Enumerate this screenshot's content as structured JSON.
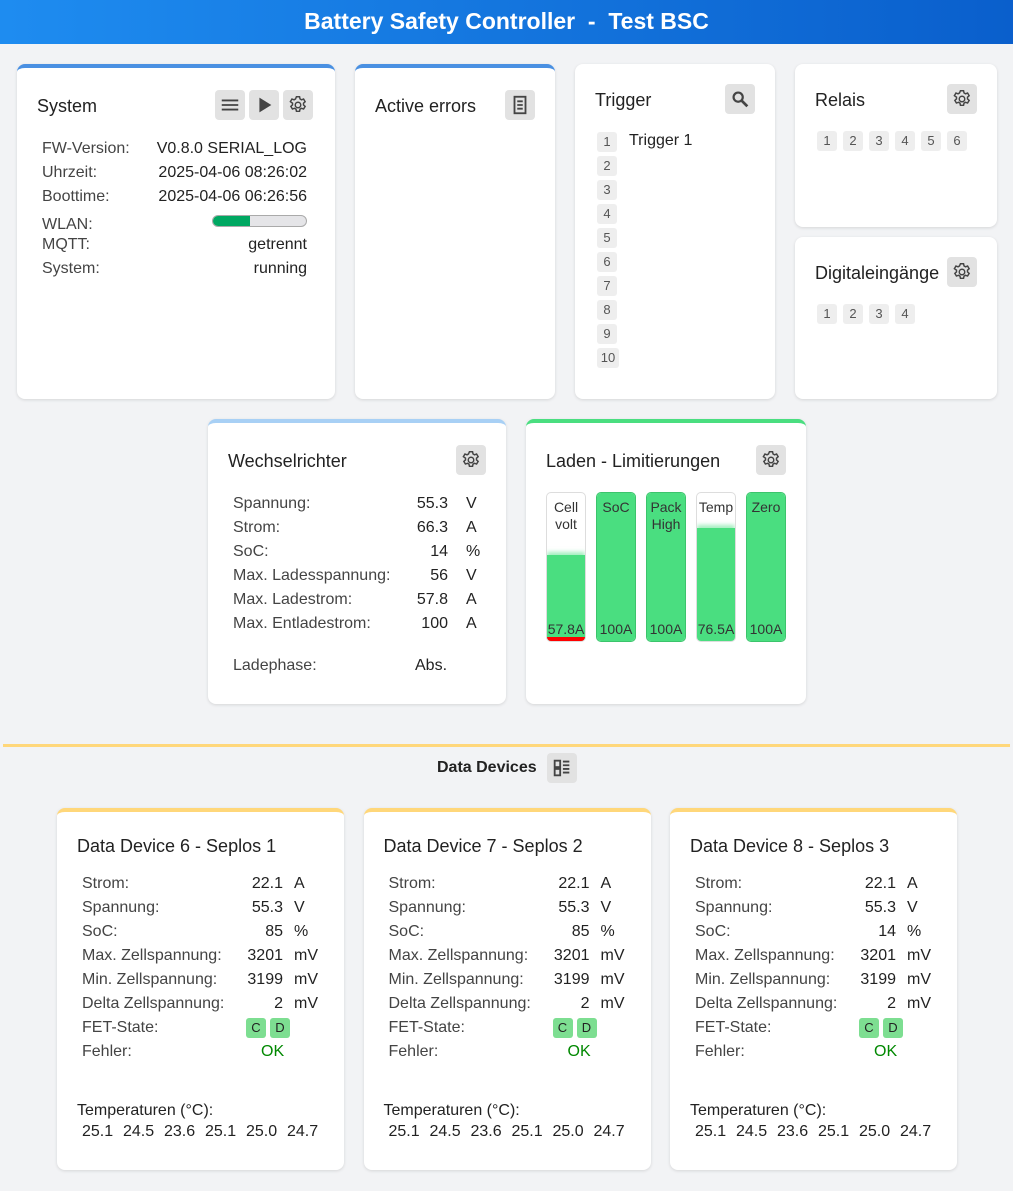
{
  "header": {
    "title": "Battery Safety Controller  -  Test BSC"
  },
  "colors": {
    "header": "#1e8cf0",
    "system_border": "#4a90e2",
    "inverter_border": "#a8d0f5",
    "charge_border": "#4ade80",
    "devices_border": "#ffd77a",
    "ok": "#008800",
    "fill": "#4ade80",
    "warn": "#ff0000"
  },
  "system": {
    "title": "System",
    "icons": [
      "menu-icon",
      "play-icon",
      "gear-icon"
    ],
    "rows": [
      {
        "label": "FW-Version:",
        "value": "V0.8.0 SERIAL_LOG"
      },
      {
        "label": "Uhrzeit:",
        "value": "2025-04-06 08:26:02"
      },
      {
        "label": "Boottime:",
        "value": "2025-04-06 06:26:56"
      }
    ],
    "wlan": {
      "label": "WLAN:",
      "signal_percent": 40
    },
    "rows2": [
      {
        "label": "MQTT:",
        "value": "getrennt"
      },
      {
        "label": "System:",
        "value": "running"
      }
    ]
  },
  "errors": {
    "title": "Active errors",
    "icon": "document-icon"
  },
  "trigger": {
    "title": "Trigger",
    "icon": "search-icon",
    "items": [
      {
        "n": "1",
        "name": "Trigger 1"
      },
      {
        "n": "2",
        "name": ""
      },
      {
        "n": "3",
        "name": ""
      },
      {
        "n": "4",
        "name": ""
      },
      {
        "n": "5",
        "name": ""
      },
      {
        "n": "6",
        "name": ""
      },
      {
        "n": "7",
        "name": ""
      },
      {
        "n": "8",
        "name": ""
      },
      {
        "n": "9",
        "name": ""
      },
      {
        "n": "10",
        "name": ""
      }
    ]
  },
  "relais": {
    "title": "Relais",
    "items": [
      "1",
      "2",
      "3",
      "4",
      "5",
      "6"
    ]
  },
  "digital": {
    "title": "Digitaleingänge",
    "items": [
      "1",
      "2",
      "3",
      "4"
    ]
  },
  "inverter": {
    "title": "Wechselrichter",
    "rows": [
      {
        "label": "Spannung:",
        "value": "55.3",
        "unit": "V"
      },
      {
        "label": "Strom:",
        "value": "66.3",
        "unit": "A"
      },
      {
        "label": "SoC:",
        "value": "14",
        "unit": "%"
      },
      {
        "label": "Max. Ladesspannung:",
        "value": "56",
        "unit": "V"
      },
      {
        "label": "Max. Ladestrom:",
        "value": "57.8",
        "unit": "A"
      },
      {
        "label": "Max. Entladestrom:",
        "value": "100",
        "unit": "A"
      }
    ],
    "phase_label": "Ladephase:",
    "phase_value": "Abs."
  },
  "charge": {
    "title": "Laden - Limitierungen",
    "bars": [
      {
        "label": "Cell volt",
        "value": "57.8A",
        "percent": 57.8,
        "limiting": true
      },
      {
        "label": "SoC",
        "value": "100A",
        "percent": 100
      },
      {
        "label": "Pack High",
        "value": "100A",
        "percent": 100
      },
      {
        "label": "Temp",
        "value": "76.5A",
        "percent": 76.5
      },
      {
        "label": "Zero",
        "value": "100A",
        "percent": 100
      }
    ]
  },
  "devices": {
    "title": "Data Devices",
    "icon": "list-view-icon",
    "items": [
      {
        "title": "Data Device 6 - Seplos 1",
        "soc": "85"
      },
      {
        "title": "Data Device 7 - Seplos 2",
        "soc": "85"
      },
      {
        "title": "Data Device 8 - Seplos 3",
        "soc": "14"
      }
    ],
    "rows": [
      {
        "label": "Strom:",
        "value": "22.1",
        "unit": "A"
      },
      {
        "label": "Spannung:",
        "value": "55.3",
        "unit": "V"
      },
      {
        "label": "SoC:",
        "value": "",
        "unit": "%"
      },
      {
        "label": "Max. Zellspannung:",
        "value": "3201",
        "unit": "mV"
      },
      {
        "label": "Min. Zellspannung:",
        "value": "3199",
        "unit": "mV"
      },
      {
        "label": "Delta Zellspannung:",
        "value": "2",
        "unit": "mV"
      }
    ],
    "fet_label": "FET-State:",
    "fet": [
      "C",
      "D"
    ],
    "error_label": "Fehler:",
    "error_value": "OK",
    "temp_label": "Temperaturen (°C):",
    "temps": [
      "25.1",
      "24.5",
      "23.6",
      "25.1",
      "25.0",
      "24.7"
    ]
  }
}
